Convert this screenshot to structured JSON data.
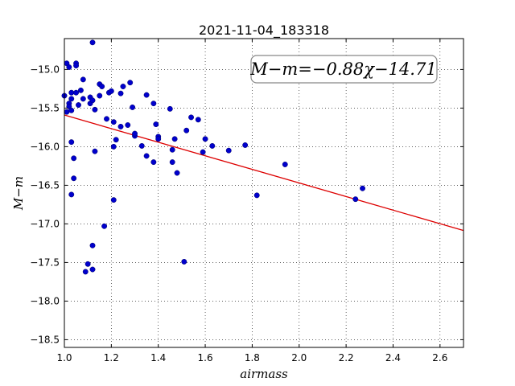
{
  "chart_data": {
    "type": "scatter",
    "title": "2021-11-04_183318",
    "xlabel": "airmass",
    "ylabel": "M−m",
    "xlim": [
      1.0,
      2.7
    ],
    "ylim": [
      -18.6,
      -14.6
    ],
    "y_inverted": true,
    "grid": true,
    "xticks": [
      1.0,
      1.2,
      1.4,
      1.6,
      1.8,
      2.0,
      2.2,
      2.4,
      2.6
    ],
    "xtick_labels": [
      "1.0",
      "1.2",
      "1.4",
      "1.6",
      "1.8",
      "2.0",
      "2.2",
      "2.4",
      "2.6"
    ],
    "yticks": [
      -15.0,
      -15.5,
      -16.0,
      -16.5,
      -17.0,
      -17.5,
      -18.0,
      -18.5
    ],
    "ytick_labels": [
      "−15.0",
      "−15.5",
      "−16.0",
      "−16.5",
      "−17.0",
      "−17.5",
      "−18.0",
      "−18.5"
    ],
    "annotation": "M−m=−0.88χ−14.71",
    "point_color": "#0000cc",
    "fit_color": "#dd0000",
    "series": [
      {
        "type": "scatter",
        "points": [
          [
            1.0,
            -15.34
          ],
          [
            1.01,
            -14.92
          ],
          [
            1.01,
            -15.55
          ],
          [
            1.02,
            -14.97
          ],
          [
            1.02,
            -15.44
          ],
          [
            1.03,
            -15.3
          ],
          [
            1.03,
            -15.38
          ],
          [
            1.02,
            -15.48
          ],
          [
            1.03,
            -15.53
          ],
          [
            1.05,
            -14.92
          ],
          [
            1.05,
            -14.95
          ],
          [
            1.05,
            -15.3
          ],
          [
            1.06,
            -15.46
          ],
          [
            1.07,
            -15.27
          ],
          [
            1.08,
            -15.13
          ],
          [
            1.08,
            -15.38
          ],
          [
            1.03,
            -15.94
          ],
          [
            1.04,
            -16.15
          ],
          [
            1.04,
            -16.41
          ],
          [
            1.03,
            -16.62
          ],
          [
            1.11,
            -15.36
          ],
          [
            1.11,
            -15.44
          ],
          [
            1.12,
            -15.4
          ],
          [
            1.13,
            -15.52
          ],
          [
            1.12,
            -14.65
          ],
          [
            1.15,
            -15.34
          ],
          [
            1.15,
            -15.19
          ],
          [
            1.16,
            -15.22
          ],
          [
            1.18,
            -15.64
          ],
          [
            1.19,
            -15.3
          ],
          [
            1.2,
            -15.28
          ],
          [
            1.21,
            -15.68
          ],
          [
            1.21,
            -16.0
          ],
          [
            1.22,
            -15.91
          ],
          [
            1.24,
            -15.31
          ],
          [
            1.25,
            -15.22
          ],
          [
            1.24,
            -15.74
          ],
          [
            1.27,
            -15.72
          ],
          [
            1.28,
            -15.17
          ],
          [
            1.29,
            -15.49
          ],
          [
            1.3,
            -15.86
          ],
          [
            1.3,
            -15.83
          ],
          [
            1.33,
            -15.99
          ],
          [
            1.35,
            -15.33
          ],
          [
            1.35,
            -16.12
          ],
          [
            1.38,
            -16.2
          ],
          [
            1.38,
            -15.44
          ],
          [
            1.39,
            -15.71
          ],
          [
            1.4,
            -15.87
          ],
          [
            1.4,
            -15.9
          ],
          [
            1.45,
            -15.51
          ],
          [
            1.46,
            -16.2
          ],
          [
            1.46,
            -16.04
          ],
          [
            1.47,
            -15.9
          ],
          [
            1.48,
            -16.34
          ],
          [
            1.52,
            -15.79
          ],
          [
            1.54,
            -15.62
          ],
          [
            1.57,
            -15.65
          ],
          [
            1.59,
            -16.07
          ],
          [
            1.6,
            -15.9
          ],
          [
            1.63,
            -15.99
          ],
          [
            1.7,
            -16.05
          ],
          [
            1.77,
            -15.98
          ],
          [
            1.82,
            -16.63
          ],
          [
            1.94,
            -16.23
          ],
          [
            2.24,
            -16.68
          ],
          [
            2.27,
            -16.54
          ],
          [
            1.13,
            -16.06
          ],
          [
            1.21,
            -16.69
          ],
          [
            1.17,
            -17.03
          ],
          [
            1.12,
            -17.28
          ],
          [
            1.1,
            -17.52
          ],
          [
            1.12,
            -17.59
          ],
          [
            1.09,
            -17.62
          ],
          [
            1.51,
            -17.49
          ]
        ]
      },
      {
        "type": "line",
        "slope": -0.88,
        "intercept": -14.71,
        "x": [
          1.0,
          2.7
        ],
        "y": [
          -15.59,
          -17.086
        ]
      }
    ]
  }
}
